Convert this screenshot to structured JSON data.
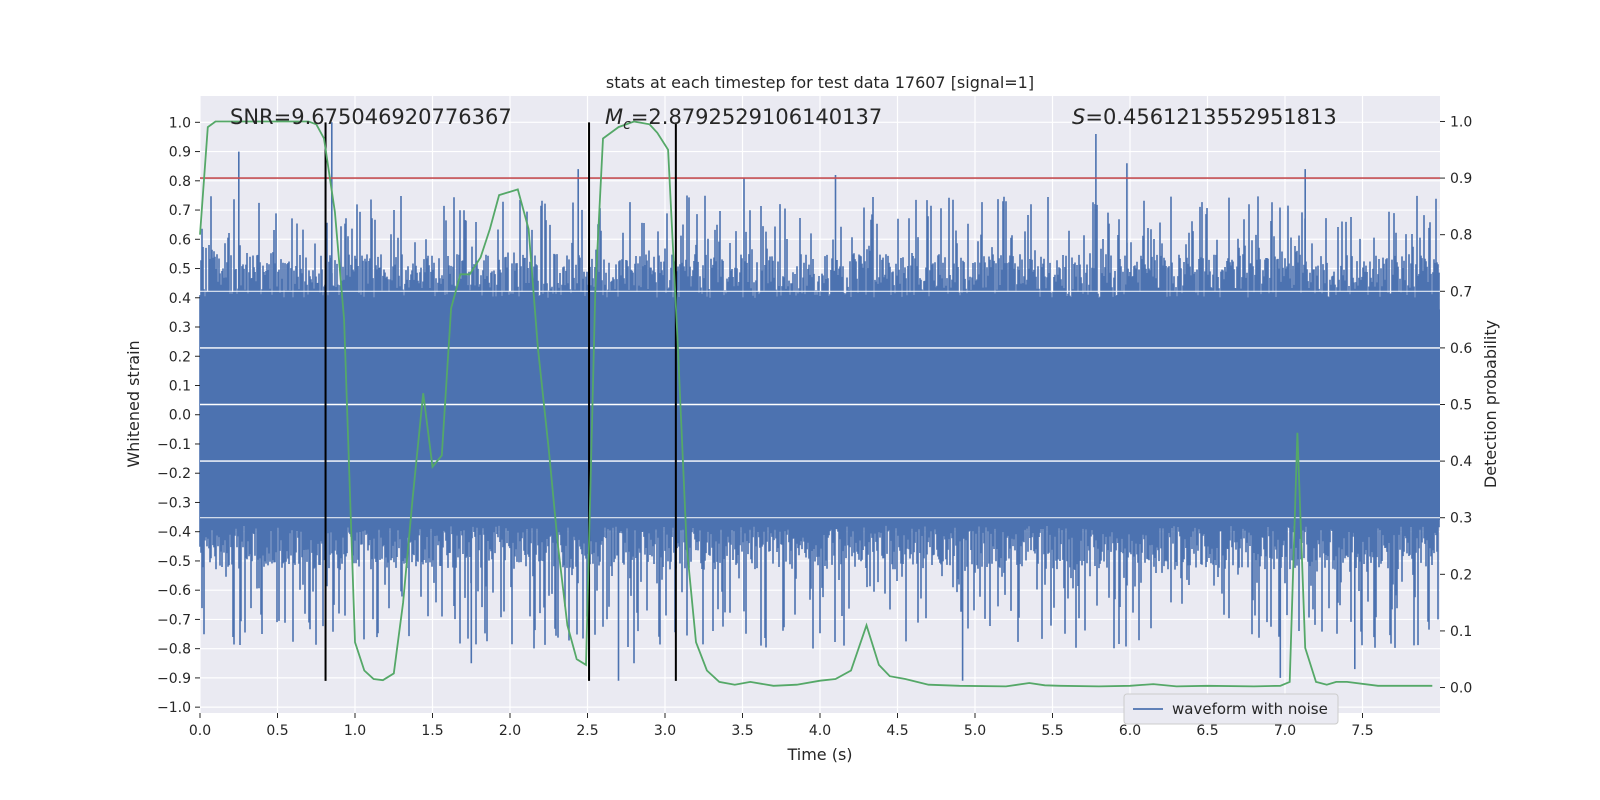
{
  "chart_data": {
    "type": "line",
    "title": "stats at each timestep for test data 17607 [signal=1]",
    "xlabel": "Time (s)",
    "ylabel": "Whitened strain",
    "y2label": "Detection probability",
    "xlim": [
      0.0,
      8.0
    ],
    "ylim": [
      -1.02,
      1.09
    ],
    "y2lim": [
      -0.045,
      1.045
    ],
    "grid": true,
    "xticks": [
      0.0,
      0.5,
      1.0,
      1.5,
      2.0,
      2.5,
      3.0,
      3.5,
      4.0,
      4.5,
      5.0,
      5.5,
      6.0,
      6.5,
      7.0,
      7.5
    ],
    "xtick_labels": [
      "0.0",
      "0.5",
      "1.0",
      "1.5",
      "2.0",
      "2.5",
      "3.0",
      "3.5",
      "4.0",
      "4.5",
      "5.0",
      "5.5",
      "6.0",
      "6.5",
      "7.0",
      "7.5"
    ],
    "yticks": [
      1.0,
      0.9,
      0.8,
      0.7,
      0.6,
      0.5,
      0.4,
      0.3,
      0.2,
      0.1,
      0.0,
      -0.1,
      -0.2,
      -0.3,
      -0.4,
      -0.5,
      -0.6,
      -0.7,
      -0.8,
      -0.9,
      -1.0
    ],
    "ytick_labels": [
      "1.0",
      "0.9",
      "0.8",
      "0.7",
      "0.6",
      "0.5",
      "0.4",
      "0.3",
      "0.2",
      "0.1",
      "0.0",
      "−0.1",
      "−0.2",
      "−0.3",
      "−0.4",
      "−0.5",
      "−0.6",
      "−0.7",
      "−0.8",
      "−0.9",
      "−1.0"
    ],
    "y2ticks": [
      1.0,
      0.9,
      0.8,
      0.7,
      0.6,
      0.5,
      0.4,
      0.3,
      0.2,
      0.1,
      0.0
    ],
    "y2tick_labels": [
      "1.0",
      "0.9",
      "0.8",
      "0.7",
      "0.6",
      "0.5",
      "0.4",
      "0.3",
      "0.2",
      "0.1",
      "0.0"
    ],
    "annotations": {
      "snr": "SNR=9.675046920776367",
      "mc_symbol": "M",
      "mc_subscript": "c",
      "mc_value": "=2.8792529106140137",
      "s_symbol": "S",
      "s_value": "=0.4561213552951813"
    },
    "threshold": {
      "axis": "y2",
      "value": 0.9,
      "color": "#c44e52"
    },
    "vertical_markers": [
      {
        "x": 0.81,
        "ymin": -0.91,
        "ymax": 1.0,
        "color": "#000000"
      },
      {
        "x": 2.51,
        "ymin": -0.91,
        "ymax": 1.0,
        "color": "#000000"
      },
      {
        "x": 3.07,
        "ymin": -0.91,
        "ymax": 1.0,
        "color": "#000000"
      }
    ],
    "legend": {
      "label": "waveform with noise",
      "placement": "lower-right"
    },
    "series": [
      {
        "name": "waveform with noise",
        "axis": "y",
        "color": "#4c72b0",
        "style": "dense-noise",
        "peaks": [
          {
            "x": 0.25,
            "y": 0.9
          },
          {
            "x": 0.85,
            "y": 1.0
          },
          {
            "x": 2.44,
            "y": 0.84
          },
          {
            "x": 3.51,
            "y": 0.81
          },
          {
            "x": 4.1,
            "y": 0.82
          },
          {
            "x": 5.78,
            "y": 0.96
          },
          {
            "x": 5.98,
            "y": 0.86
          },
          {
            "x": 7.13,
            "y": 0.84
          },
          {
            "x": 2.7,
            "y": -0.91
          },
          {
            "x": 2.8,
            "y": -0.85
          },
          {
            "x": 4.92,
            "y": -0.91
          },
          {
            "x": 6.97,
            "y": -0.9
          },
          {
            "x": 7.45,
            "y": -0.87
          },
          {
            "x": 1.75,
            "y": -0.85
          },
          {
            "x": 0.4,
            "y": -0.75
          }
        ]
      },
      {
        "name": "detection probability",
        "axis": "y2",
        "color": "#55a868",
        "x": [
          0.0,
          0.05,
          0.1,
          0.2,
          0.4,
          0.6,
          0.7,
          0.75,
          0.8,
          0.87,
          0.93,
          1.0,
          1.06,
          1.12,
          1.18,
          1.25,
          1.31,
          1.37,
          1.44,
          1.5,
          1.56,
          1.62,
          1.68,
          1.74,
          1.81,
          1.87,
          1.93,
          2.05,
          2.12,
          2.18,
          2.25,
          2.31,
          2.37,
          2.43,
          2.49,
          2.55,
          2.6,
          2.7,
          2.8,
          2.9,
          2.95,
          3.02,
          3.08,
          3.14,
          3.2,
          3.27,
          3.35,
          3.45,
          3.55,
          3.7,
          3.85,
          4.0,
          4.1,
          4.2,
          4.3,
          4.38,
          4.45,
          4.55,
          4.7,
          4.9,
          5.2,
          5.35,
          5.45,
          5.55,
          5.8,
          6.0,
          6.15,
          6.3,
          6.5,
          6.8,
          6.97,
          7.03,
          7.08,
          7.13,
          7.2,
          7.27,
          7.33,
          7.4,
          7.6,
          7.95
        ],
        "y": [
          0.8,
          0.99,
          1.0,
          1.0,
          1.0,
          1.0,
          1.0,
          0.995,
          0.97,
          0.84,
          0.65,
          0.08,
          0.03,
          0.015,
          0.013,
          0.025,
          0.15,
          0.33,
          0.52,
          0.39,
          0.41,
          0.67,
          0.73,
          0.73,
          0.76,
          0.81,
          0.87,
          0.88,
          0.81,
          0.6,
          0.42,
          0.25,
          0.11,
          0.05,
          0.04,
          0.7,
          0.97,
          0.99,
          1.0,
          0.995,
          0.98,
          0.95,
          0.62,
          0.25,
          0.08,
          0.03,
          0.01,
          0.005,
          0.01,
          0.003,
          0.005,
          0.012,
          0.015,
          0.03,
          0.11,
          0.04,
          0.02,
          0.015,
          0.005,
          0.003,
          0.002,
          0.008,
          0.004,
          0.003,
          0.002,
          0.003,
          0.006,
          0.002,
          0.003,
          0.002,
          0.003,
          0.01,
          0.45,
          0.07,
          0.01,
          0.005,
          0.01,
          0.01,
          0.003,
          0.003
        ]
      }
    ]
  }
}
